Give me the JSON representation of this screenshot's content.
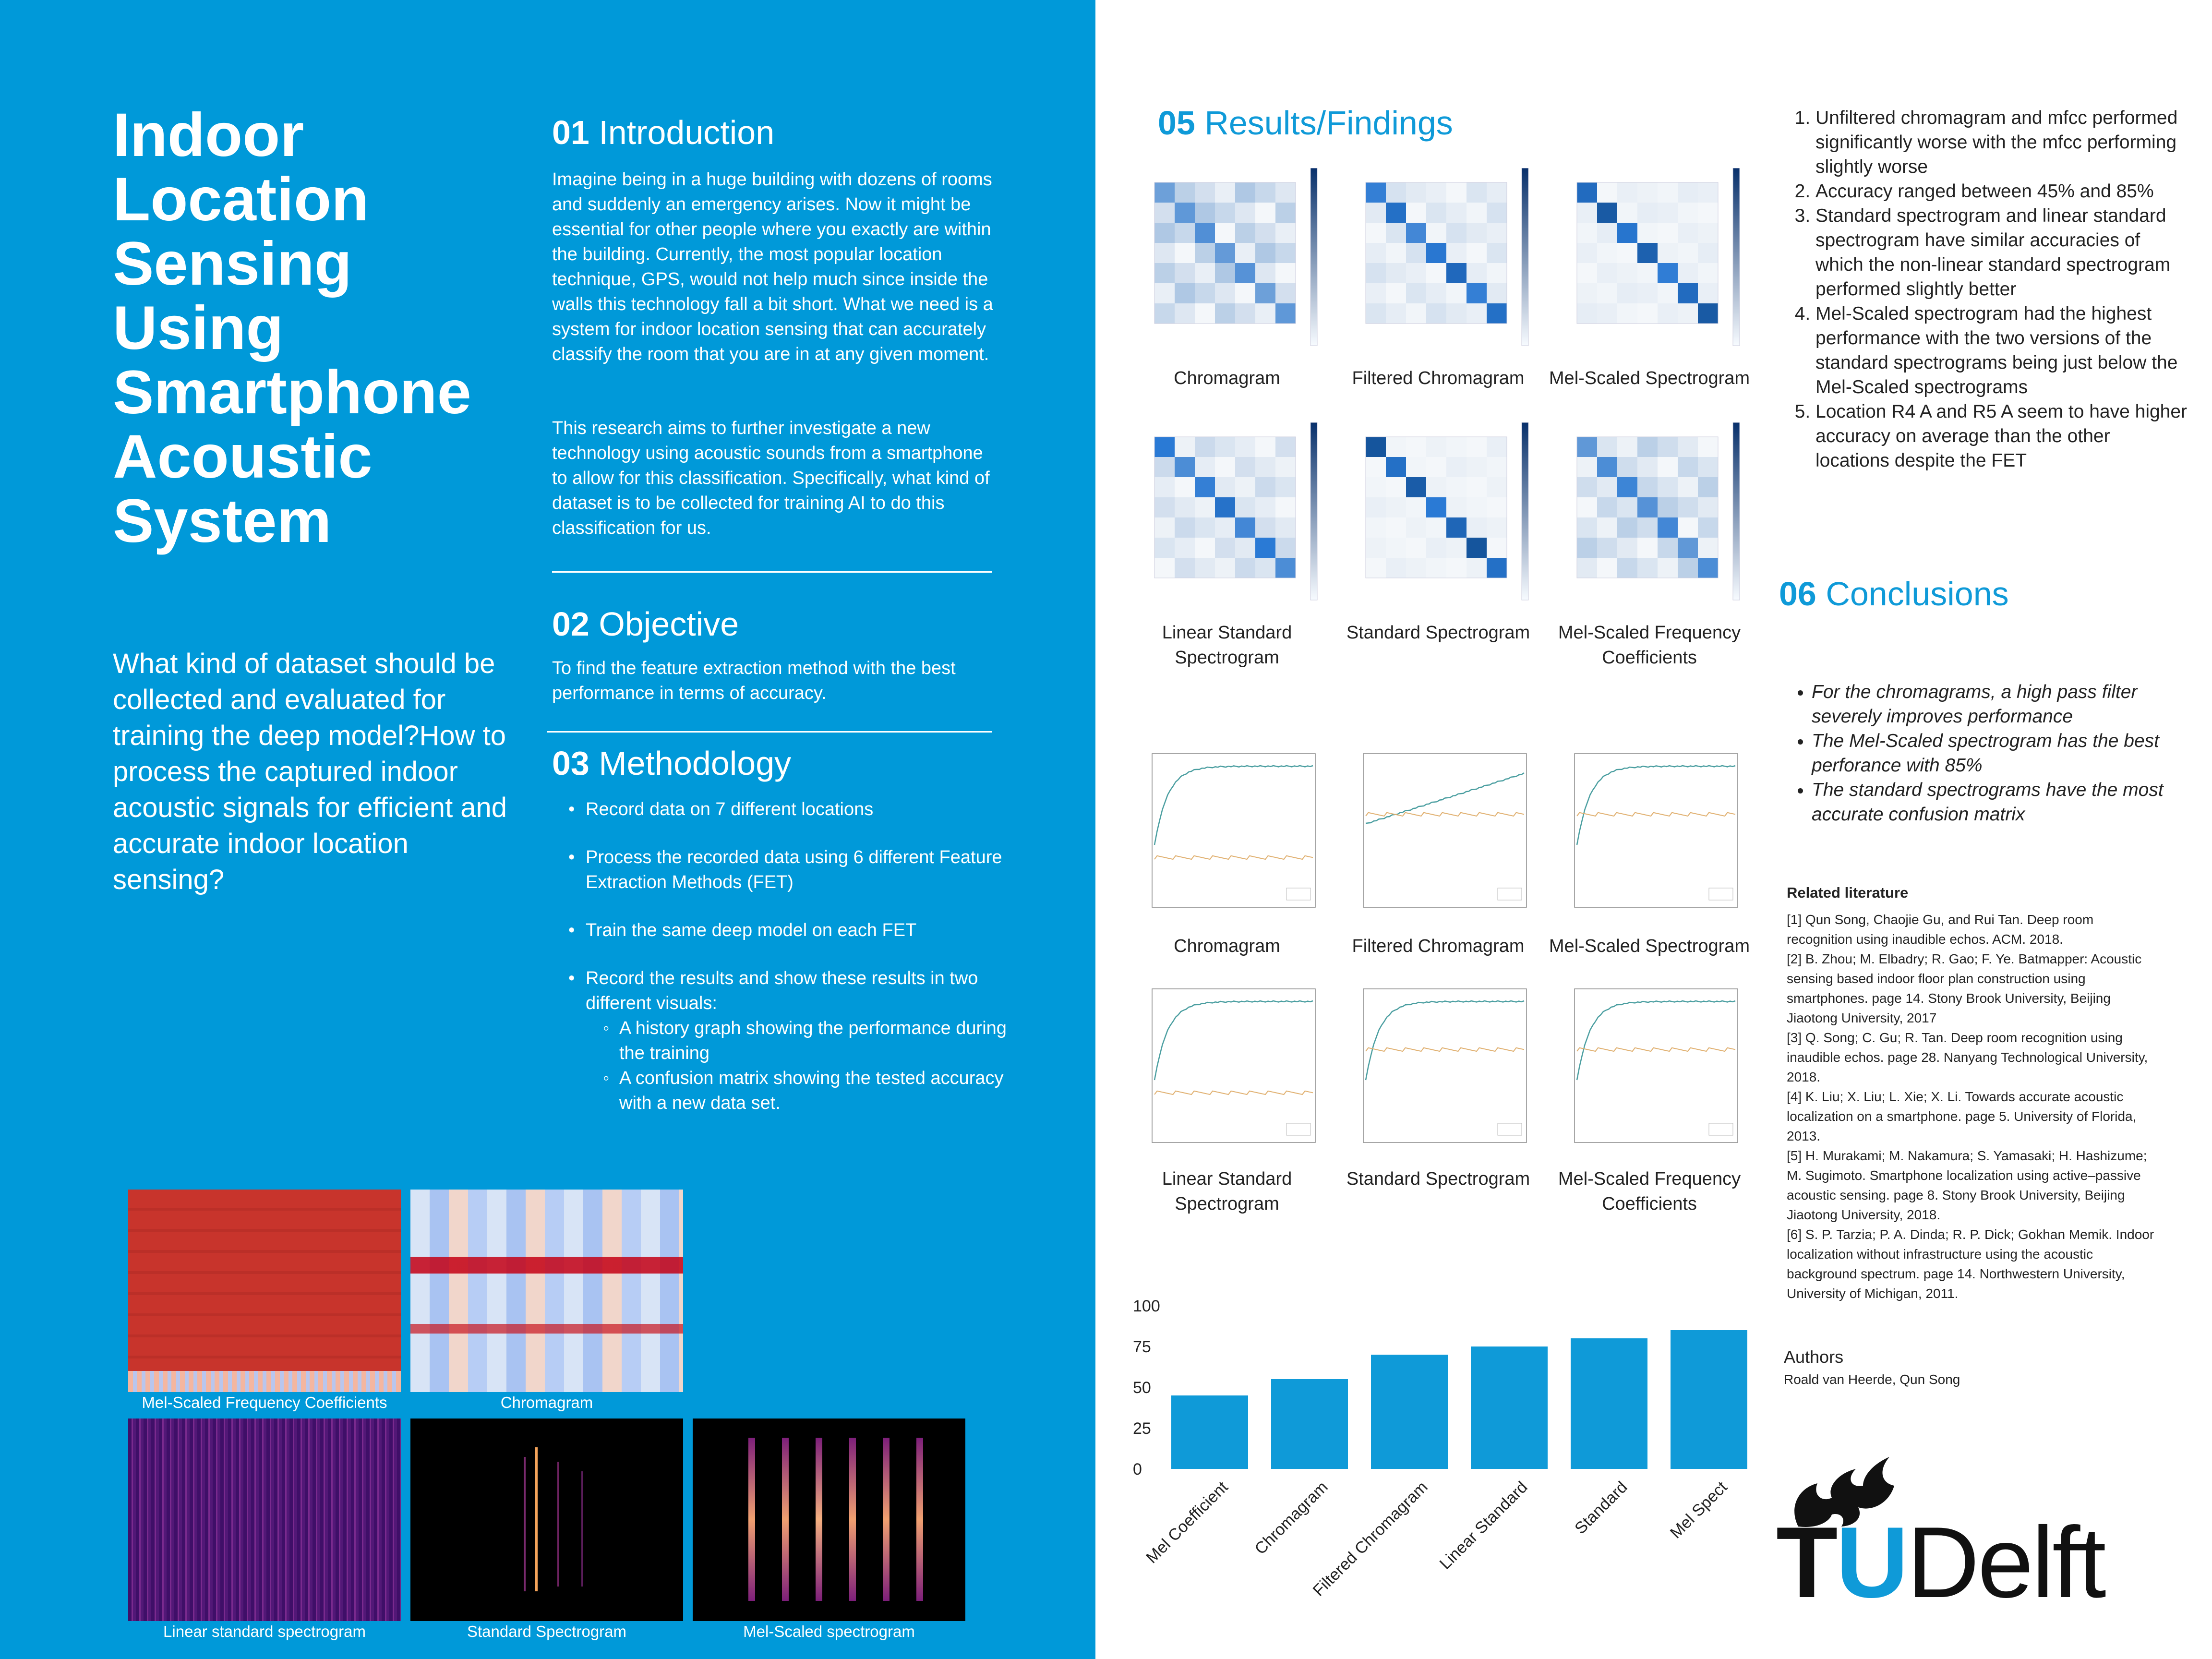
{
  "title": [
    "Indoor",
    "Location",
    "Sensing",
    "Using",
    "Smartphone",
    "Acoustic",
    "System"
  ],
  "question": "What kind of dataset should be collected and evaluated for training the deep model?How to process the captured indoor acoustic signals for efficient and accurate indoor location sensing?",
  "sections": {
    "s01": {
      "num": "01",
      "title": "Introduction",
      "p1": "Imagine being in a huge building with dozens of rooms and suddenly an emergency arises. Now it might be essential for other people where you exactly are within the building. Currently, the most popular location technique, GPS, would not help much since inside the walls this technology fall a bit short. What we need is a system for indoor location sensing that can accurately classify the room that you are in at any given moment.",
      "p2": "This research aims to further investigate a new technology using acoustic sounds from a smartphone to allow for this classification. Specifically, what kind of dataset is to be collected for training AI to do this classification for us."
    },
    "s02": {
      "num": "02",
      "title": "Objective",
      "p1": "To find the feature extraction method with the best performance in terms of accuracy."
    },
    "s03": {
      "num": "03",
      "title": "Methodology",
      "items": [
        "Record data on 7 different locations",
        "Process the recorded data using 6 different Feature Extraction Methods (FET)",
        "Train the same deep model on each FET",
        "Record the results  and show these results in two different visuals:"
      ],
      "subitems": [
        "A history graph showing the performance during the training",
        "A confusion matrix showing the tested accuracy with a new data set."
      ]
    },
    "s05": {
      "num": "05",
      "title": "Results/Findings"
    },
    "s06": {
      "num": "06",
      "title": "Conclusions"
    }
  },
  "matrix_captions": [
    "Chromagram",
    "Filtered Chromagram",
    "Mel-Scaled Spectrogram",
    "Linear Standard Spectrogram",
    "Standard Spectrogram",
    "Mel-Scaled Frequency Coefficients"
  ],
  "history_captions": [
    "Chromagram",
    "Filtered Chromagram",
    "Mel-Scaled Spectrogram",
    "Linear Standard Spectrogram",
    "Standard Spectrogram",
    "Mel-Scaled Frequency Coefficients"
  ],
  "spectrogram_captions": [
    "Mel-Scaled Frequency Coefficients",
    "Chromagram",
    "Linear standard spectrogram",
    "Standard Spectrogram",
    "Mel-Scaled spectrogram"
  ],
  "findings": [
    "Unfiltered chromagram and mfcc performed significantly worse with the mfcc performing slightly worse",
    "Accuracy ranged between 45% and 85%",
    "Standard spectrogram and linear standard spectrogram have similar accuracies of which the non-linear standard spectrogram performed slightly better",
    "Mel-Scaled spectrogram had the highest performance with the two versions of the standard spectrograms being just below the Mel-Scaled spectrograms",
    "Location R4 A and R5 A seem to have higher accuracy on average than the other locations despite the FET"
  ],
  "conclusions": [
    "For the chromagrams, a high pass filter severely improves performance",
    "The Mel-Scaled spectrogram has the best perforance with 85%",
    "The standard spectrograms have the most accurate confusion matrix"
  ],
  "references": {
    "heading": "Related literature",
    "items": [
      "[1] Qun Song, Chaojie Gu, and Rui Tan. Deep room recognition using inaudible echos. ACM. 2018.",
      "[2] B. Zhou; M. Elbadry; R. Gao; F. Ye. Batmapper: Acoustic sensing based indoor floor plan construction using smartphones. page 14. Stony Brook University, Beijing Jiaotong University, 2017",
      "[3] Q. Song; C. Gu; R. Tan. Deep room recognition using inaudible echos. page 28. Nanyang Technological University, 2018.",
      "[4] K. Liu; X. Liu; L. Xie; X. Li. Towards accurate acoustic localization on a smartphone. page 5. University of Florida, 2013.",
      "[5] H. Murakami; M. Nakamura; S. Yamasaki; H. Hashizume; M. Sugimoto. Smartphone localization using active–passive acoustic sensing. page 8. Stony Brook University, Beijing Jiaotong University, 2018.",
      "[6] S. P. Tarzia; P. A. Dinda; R. P. Dick; Gokhan Memik. Indoor localization without infrastructure using the acoustic background spectrum. page 14. Northwestern University, University of Michigan, 2011."
    ]
  },
  "authors": {
    "heading": "Authors",
    "names": "Roald van Heerde, Qun Song"
  },
  "logo_text": "TUDelft",
  "colors": {
    "accent": "#0099d9",
    "bar": "#0f9ad8"
  },
  "chart_data": {
    "type": "bar",
    "categories": [
      "Mel Coefficient",
      "Chromagram",
      "Filtered Chromagram",
      "Linear Standard",
      "Standard",
      "Mel Spect"
    ],
    "values": [
      45,
      55,
      70,
      75,
      80,
      85
    ],
    "yticks": [
      "0",
      "25",
      "50",
      "75",
      "100"
    ],
    "ylim": [
      0,
      100
    ]
  }
}
